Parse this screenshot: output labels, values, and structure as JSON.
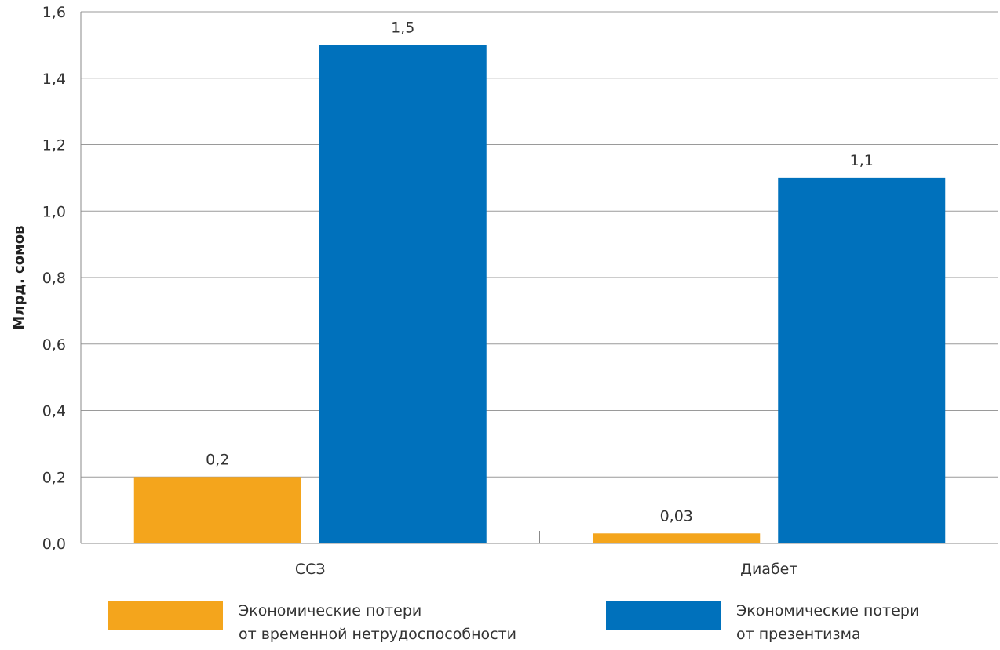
{
  "chart_data": {
    "type": "bar",
    "ylabel": "Млрд. сомов",
    "ylim": [
      0,
      1.6
    ],
    "y_ticks": [
      "0,0",
      "0,2",
      "0,4",
      "0,6",
      "0,8",
      "1,0",
      "1,2",
      "1,4",
      "1,6"
    ],
    "categories": [
      "ССЗ",
      "Диабет"
    ],
    "series": [
      {
        "name_line1": "Экономические потери",
        "name_line2": "от временной нетрудоспособности",
        "color": "#F4A51C",
        "values": [
          0.2,
          0.03
        ],
        "labels": [
          "0,2",
          "0,03"
        ]
      },
      {
        "name_line1": "Экономические потери",
        "name_line2": "от презентизма",
        "color": "#0071BC",
        "values": [
          1.5,
          1.1
        ],
        "labels": [
          "1,5",
          "1,1"
        ]
      }
    ],
    "grid": true,
    "legend_position": "bottom"
  }
}
